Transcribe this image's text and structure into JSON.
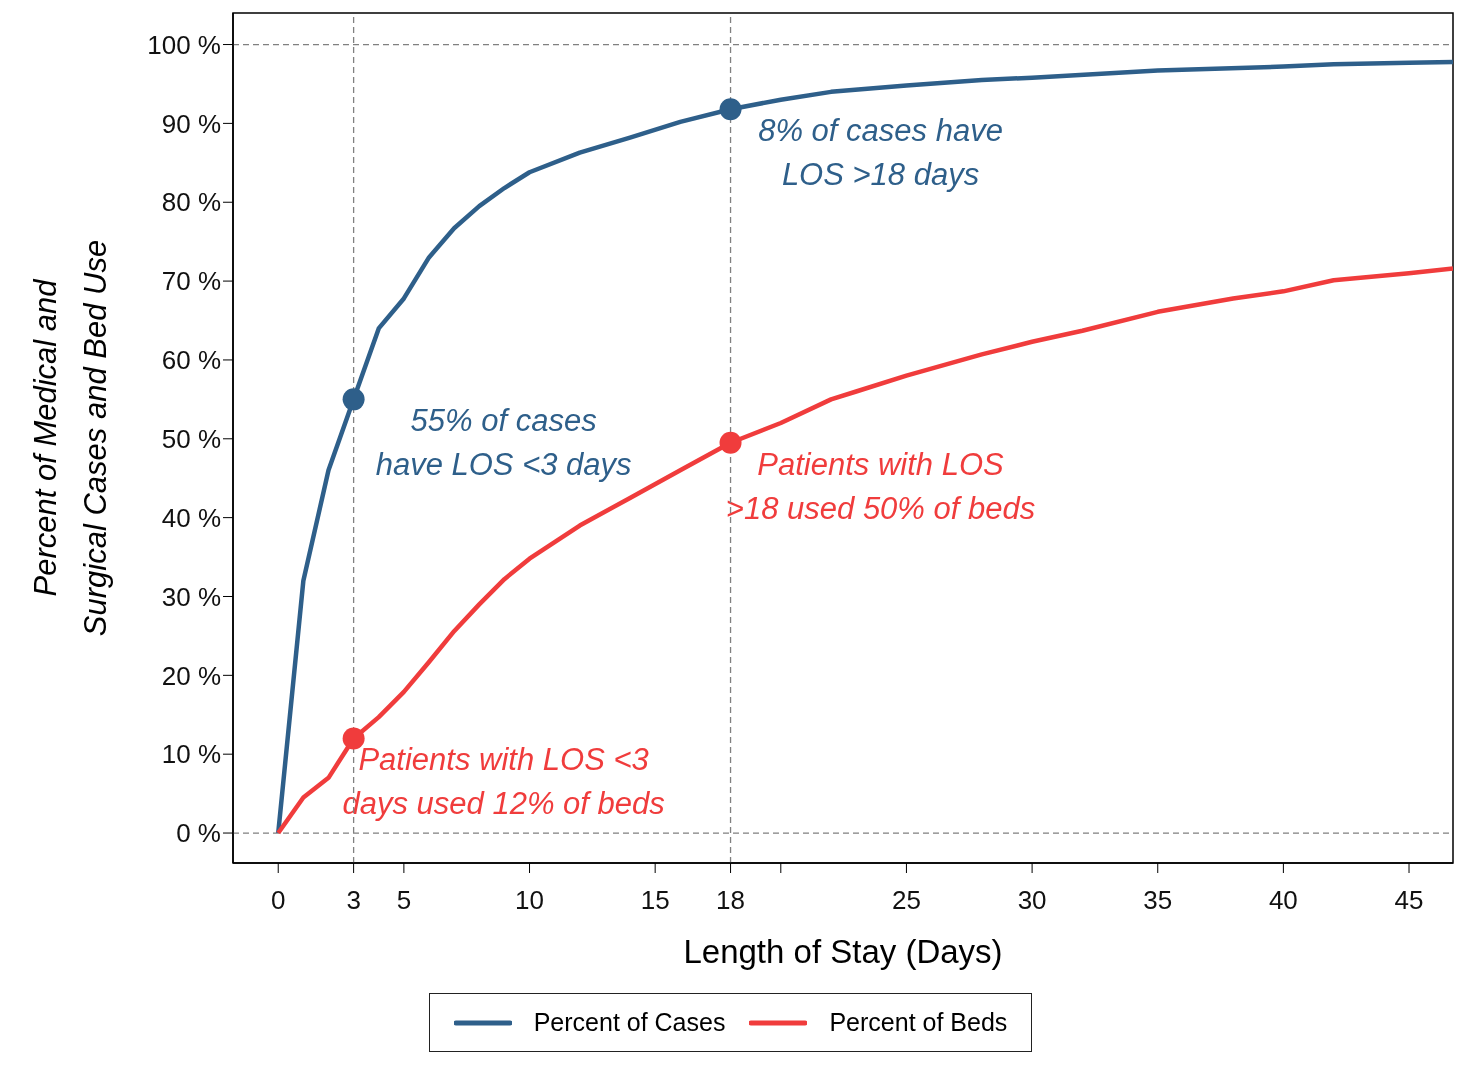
{
  "chart_data": {
    "type": "line",
    "xlabel": "Length of Stay (Days)",
    "ylabel": "Percent of Medical and Surgical Cases and Bed Use",
    "xlim": [
      -1.8,
      46.75
    ],
    "ylim": [
      -3.8,
      104
    ],
    "xticks": [
      0,
      3,
      5,
      10,
      15,
      18,
      {
        "value": 20,
        "label": null
      },
      25,
      30,
      35,
      40,
      45
    ],
    "yticks": [
      {
        "value": 0,
        "label": "0 %"
      },
      {
        "value": 10,
        "label": "10 %"
      },
      {
        "value": 20,
        "label": "20 %"
      },
      {
        "value": 30,
        "label": "30 %"
      },
      {
        "value": 40,
        "label": "40 %"
      },
      {
        "value": 50,
        "label": "50 %"
      },
      {
        "value": 60,
        "label": "60 %"
      },
      {
        "value": 70,
        "label": "70 %"
      },
      {
        "value": 80,
        "label": "80 %"
      },
      {
        "value": 90,
        "label": "90 %"
      },
      {
        "value": 100,
        "label": "100 %"
      }
    ],
    "series": [
      {
        "name": "Percent of Cases",
        "color": "#2e5f8a",
        "x": [
          0,
          1,
          2,
          3,
          4,
          5,
          6,
          7,
          8,
          9,
          10,
          12,
          14,
          16,
          18,
          20,
          22,
          25,
          28,
          30,
          35,
          40,
          42,
          45,
          46.75
        ],
        "values": [
          0,
          32,
          46,
          55,
          64,
          67.8,
          73,
          76.7,
          79.5,
          81.8,
          83.8,
          86.3,
          88.2,
          90.2,
          91.8,
          93,
          94,
          94.8,
          95.5,
          95.8,
          96.7,
          97.2,
          97.5,
          97.7,
          97.8
        ]
      },
      {
        "name": "Percent of Beds",
        "color": "#f03c3c",
        "x": [
          0,
          1,
          2,
          3,
          4,
          5,
          6,
          7,
          8,
          9,
          10,
          12,
          14,
          16,
          18,
          20,
          22,
          23,
          25,
          28,
          30,
          32,
          35,
          38,
          40,
          42,
          45,
          46.75
        ],
        "values": [
          0,
          4.5,
          7,
          12,
          14.7,
          17.9,
          21.7,
          25.6,
          29,
          32.2,
          34.8,
          39,
          42.5,
          46,
          49.5,
          52,
          55,
          56,
          58,
          60.7,
          62.3,
          63.7,
          66.1,
          67.8,
          68.7,
          70.1,
          71,
          71.6
        ]
      },
      {
        "type": "scatter",
        "marker": "circle",
        "color": "#2e5f8a",
        "x": [
          3,
          18
        ],
        "values": [
          55,
          91.8
        ]
      },
      {
        "type": "scatter",
        "marker": "circle",
        "color": "#f03c3c",
        "x": [
          3,
          18
        ],
        "values": [
          12,
          49.5
        ]
      }
    ],
    "ref_lines": [
      {
        "axis": "x",
        "value": 3,
        "color": "#808080",
        "line_style": "dashed"
      },
      {
        "axis": "x",
        "value": 18,
        "color": "#808080",
        "line_style": "dashed"
      },
      {
        "axis": "y",
        "value": 0,
        "color": "#808080",
        "line_style": "dashed"
      },
      {
        "axis": "y",
        "value": 100,
        "color": "#808080",
        "line_style": "dashed"
      }
    ],
    "annotations": [
      "55% of cases have LOS <3 days",
      "8% of cases have LOS >18 days",
      "Patients with LOS <3 days used 12% of beds",
      "Patients with LOS >18 used 50% of beds"
    ],
    "legend": "bottom",
    "marker": "none",
    "line_style": "solid"
  }
}
